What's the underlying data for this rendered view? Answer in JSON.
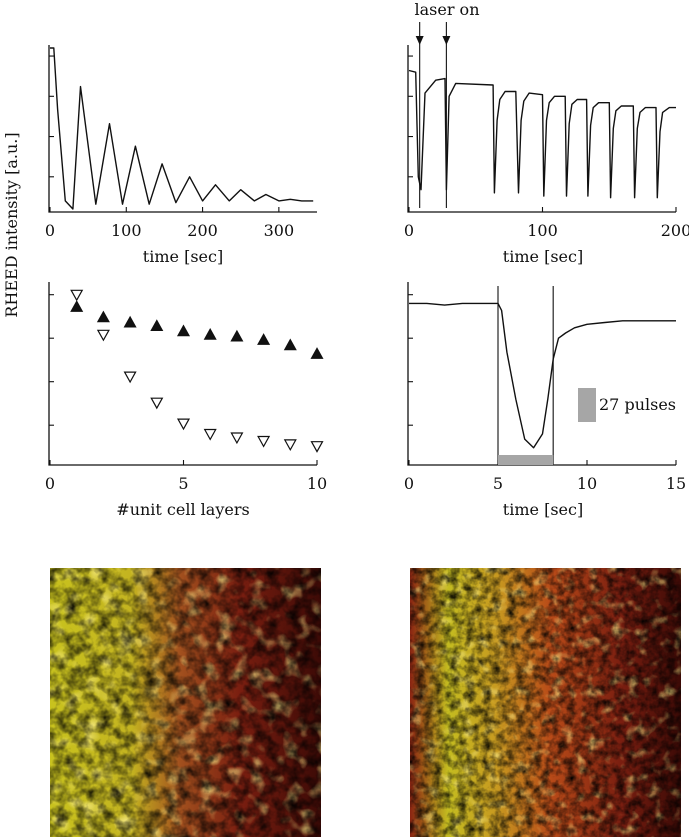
{
  "figure": {
    "shared_ylabel": "RHEED intensity [a.u.]"
  },
  "chart_data": [
    {
      "id": "a",
      "type": "line",
      "xlabel": "time [sec]",
      "ylabel": "RHEED intensity [a.u.]",
      "xlim": [
        0,
        350
      ],
      "ylim": [
        0,
        1
      ],
      "xticks": [
        0,
        100,
        200,
        300
      ],
      "series": [
        {
          "x": [
            0,
            5,
            10,
            20,
            30,
            40,
            60,
            78,
            95,
            112,
            130,
            147,
            165,
            183,
            200,
            217,
            235,
            250,
            268,
            283,
            300,
            315,
            330,
            345
          ],
          "y": [
            1.0,
            1.0,
            0.62,
            0.05,
            0.0,
            0.76,
            0.03,
            0.53,
            0.03,
            0.39,
            0.03,
            0.28,
            0.04,
            0.2,
            0.05,
            0.15,
            0.05,
            0.12,
            0.05,
            0.09,
            0.05,
            0.06,
            0.05,
            0.05
          ]
        }
      ]
    },
    {
      "id": "b",
      "type": "line",
      "xlabel": "time [sec]",
      "xlim": [
        0,
        200
      ],
      "ylim": [
        0,
        1
      ],
      "xticks": [
        0,
        100,
        200
      ],
      "annotation": "laser on",
      "annotation_x": [
        8,
        28
      ],
      "series": [
        {
          "x": [
            0,
            5,
            7,
            9,
            12,
            20,
            27,
            28,
            30,
            35,
            63,
            64,
            66,
            68,
            72,
            80,
            82,
            84,
            86,
            90,
            100,
            101,
            103,
            105,
            109,
            117,
            118,
            120,
            122,
            126,
            133,
            134,
            136,
            138,
            142,
            150,
            151,
            153,
            155,
            159,
            168,
            169,
            171,
            173,
            177,
            185,
            186,
            188,
            190,
            195,
            200
          ],
          "y": [
            0.86,
            0.85,
            0.2,
            0.12,
            0.72,
            0.8,
            0.81,
            0.12,
            0.7,
            0.78,
            0.77,
            0.1,
            0.55,
            0.68,
            0.73,
            0.73,
            0.1,
            0.55,
            0.67,
            0.72,
            0.71,
            0.08,
            0.55,
            0.66,
            0.7,
            0.7,
            0.08,
            0.53,
            0.65,
            0.68,
            0.68,
            0.08,
            0.52,
            0.63,
            0.66,
            0.66,
            0.07,
            0.5,
            0.61,
            0.64,
            0.64,
            0.07,
            0.5,
            0.6,
            0.63,
            0.63,
            0.07,
            0.48,
            0.6,
            0.63,
            0.63
          ]
        }
      ]
    },
    {
      "id": "c",
      "type": "scatter",
      "xlabel": "#unit cell layers",
      "xlim": [
        0,
        10
      ],
      "ylim": [
        0,
        1
      ],
      "xticks": [
        0,
        5,
        10
      ],
      "series": [
        {
          "marker": "filled-triangle-up",
          "x": [
            1,
            2,
            3,
            4,
            5,
            6,
            7,
            8,
            9,
            10
          ],
          "y": [
            0.88,
            0.82,
            0.79,
            0.77,
            0.74,
            0.72,
            0.71,
            0.69,
            0.66,
            0.61
          ]
        },
        {
          "marker": "open-triangle-down",
          "x": [
            1,
            2,
            3,
            4,
            5,
            6,
            7,
            8,
            9,
            10
          ],
          "y": [
            0.95,
            0.72,
            0.48,
            0.33,
            0.21,
            0.15,
            0.13,
            0.11,
            0.09,
            0.08
          ]
        }
      ]
    },
    {
      "id": "d",
      "type": "line",
      "xlabel": "time [sec]",
      "xlim": [
        0,
        15
      ],
      "ylim": [
        0,
        1
      ],
      "xticks": [
        0,
        5,
        10,
        15
      ],
      "shaded_interval": [
        5.0,
        8.1
      ],
      "legend_label": "27 pulses",
      "series": [
        {
          "x": [
            0,
            1,
            2,
            3,
            4,
            5,
            5.2,
            5.5,
            6.0,
            6.5,
            7.0,
            7.5,
            7.8,
            8.1,
            8.4,
            8.8,
            9.3,
            10,
            11,
            12,
            13,
            14,
            15
          ],
          "y": [
            0.9,
            0.9,
            0.89,
            0.9,
            0.9,
            0.9,
            0.86,
            0.62,
            0.35,
            0.12,
            0.07,
            0.15,
            0.35,
            0.58,
            0.7,
            0.73,
            0.76,
            0.78,
            0.79,
            0.8,
            0.8,
            0.8,
            0.8
          ]
        }
      ]
    }
  ],
  "images": [
    {
      "id": "afm-left",
      "kind": "scanning-probe-micrograph",
      "colors": [
        "#3c0a06",
        "#7a1e10",
        "#a2501e",
        "#c8c21e",
        "#e6b090"
      ]
    },
    {
      "id": "afm-right",
      "kind": "scanning-probe-micrograph",
      "colors": [
        "#3c0a06",
        "#8a2412",
        "#b84a18",
        "#c4bc20"
      ]
    }
  ]
}
